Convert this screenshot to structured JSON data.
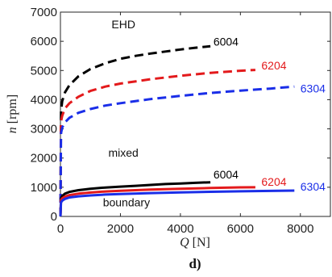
{
  "chart_data": {
    "type": "line",
    "panel_label": "d)",
    "xlabel_symbol": "Q",
    "xlabel_unit": " [N]",
    "ylabel_symbol": "n",
    "ylabel_unit": " [rpm]",
    "xlim": [
      0,
      9000
    ],
    "ylim": [
      0,
      7000
    ],
    "xticks": [
      0,
      2000,
      4000,
      6000,
      8000
    ],
    "yticks": [
      0,
      1000,
      2000,
      3000,
      4000,
      5000,
      6000,
      7000
    ],
    "grid": false,
    "region_labels": [
      {
        "text": "EHD",
        "x": 2100,
        "y": 6450
      },
      {
        "text": "mixed",
        "x": 2100,
        "y": 2050
      },
      {
        "text": "boundary",
        "x": 2200,
        "y": 350
      }
    ],
    "series": [
      {
        "name": "6004",
        "color": "#000000",
        "dash": true,
        "x": [
          0,
          20,
          60,
          150,
          300,
          600,
          1000,
          1500,
          2000,
          2500,
          3000,
          3500,
          4000,
          4500,
          5000
        ],
        "y": [
          0,
          3600,
          3950,
          4250,
          4500,
          4800,
          5050,
          5250,
          5400,
          5500,
          5580,
          5650,
          5720,
          5780,
          5830
        ],
        "label_x": 5100,
        "label_y": 5850
      },
      {
        "name": "6204",
        "color": "#e31a1c",
        "dash": true,
        "x": [
          0,
          20,
          60,
          150,
          300,
          600,
          1000,
          1500,
          2000,
          3000,
          4000,
          5000,
          6000,
          6500
        ],
        "y": [
          0,
          3250,
          3450,
          3700,
          3880,
          4100,
          4300,
          4450,
          4550,
          4700,
          4820,
          4920,
          4990,
          5020
        ],
        "label_x": 6700,
        "label_y": 5030
      },
      {
        "name": "6304",
        "color": "#1a2ee8",
        "dash": true,
        "x": [
          0,
          20,
          60,
          150,
          300,
          600,
          1000,
          1500,
          2000,
          3000,
          4000,
          5000,
          6000,
          7000,
          7800
        ],
        "y": [
          0,
          2850,
          3050,
          3220,
          3380,
          3550,
          3680,
          3800,
          3880,
          4020,
          4130,
          4230,
          4310,
          4380,
          4450
        ],
        "label_x": 8000,
        "label_y": 4250
      },
      {
        "name": "6004",
        "color": "#000000",
        "dash": false,
        "x": [
          0,
          20,
          60,
          150,
          300,
          600,
          1000,
          1500,
          2000,
          2500,
          3000,
          3500,
          4000,
          4500,
          5000
        ],
        "y": [
          0,
          620,
          700,
          780,
          840,
          900,
          950,
          990,
          1020,
          1050,
          1080,
          1110,
          1130,
          1150,
          1170
        ],
        "label_x": 5100,
        "label_y": 1300
      },
      {
        "name": "6204",
        "color": "#e31a1c",
        "dash": false,
        "x": [
          0,
          20,
          60,
          150,
          300,
          600,
          1000,
          1500,
          2000,
          3000,
          4000,
          5000,
          6000,
          6500
        ],
        "y": [
          0,
          560,
          620,
          680,
          730,
          780,
          820,
          855,
          880,
          920,
          950,
          975,
          995,
          1000
        ],
        "label_x": 6700,
        "label_y": 1050
      },
      {
        "name": "6304",
        "color": "#1a2ee8",
        "dash": false,
        "x": [
          0,
          20,
          60,
          150,
          300,
          600,
          1000,
          1500,
          2000,
          3000,
          4000,
          5000,
          6000,
          7000,
          7800
        ],
        "y": [
          0,
          480,
          540,
          600,
          650,
          690,
          720,
          750,
          770,
          800,
          825,
          845,
          860,
          875,
          885
        ],
        "label_x": 8000,
        "label_y": 880
      }
    ]
  }
}
